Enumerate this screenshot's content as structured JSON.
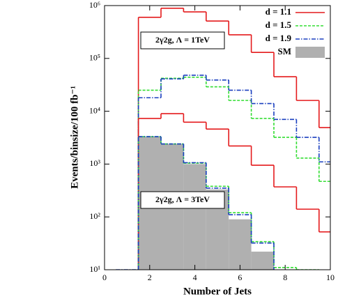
{
  "chart_data": {
    "type": "step-histogram",
    "x_label": "Number of Jets",
    "y_label": "Events/binsize/100 fb⁻¹",
    "annotations": [
      "2γ2g,  Λ = 1TeV",
      "2γ2g,  Λ = 3TeV"
    ],
    "bins": [
      0.5,
      1.5,
      2.5,
      3.5,
      4.5,
      5.5,
      6.5,
      7.5,
      8.5,
      9.5,
      10.5
    ],
    "xlim": [
      0,
      10
    ],
    "xticks": [
      0,
      2,
      4,
      6,
      8,
      10
    ],
    "ylim": [
      10,
      1000000
    ],
    "log_y": true,
    "yticks": [
      {
        "value": 10,
        "label": "10¹"
      },
      {
        "value": 100,
        "label": "10²"
      },
      {
        "value": 1000,
        "label": "10³"
      },
      {
        "value": 10000,
        "label": "10⁴"
      },
      {
        "value": 100000,
        "label": "10⁵"
      },
      {
        "value": 1000000,
        "label": "10⁶"
      }
    ],
    "legend": "upper right",
    "series": [
      {
        "name": "d = 1.1",
        "color": "#e41a1c",
        "linestyle": "solid",
        "values": [
          null,
          600000,
          890000,
          760000,
          510000,
          280000,
          130000,
          45000,
          16000,
          4900
        ]
      },
      {
        "name": "d = 1.5",
        "color": "#33dd33",
        "linestyle": "dashed",
        "values": [
          null,
          25000,
          42000,
          44000,
          29000,
          16000,
          7300,
          3200,
          1300,
          470
        ]
      },
      {
        "name": "d = 1.9",
        "color": "#1a3fbf",
        "linestyle": "dashdot",
        "values": [
          null,
          18000,
          41000,
          48000,
          39000,
          25000,
          14000,
          7000,
          3200,
          1100
        ]
      },
      {
        "color": "#e41a1c",
        "linestyle": "solid",
        "values": [
          null,
          7300,
          9000,
          6200,
          4600,
          2200,
          950,
          370,
          140,
          52
        ]
      },
      {
        "color": "#33dd33",
        "linestyle": "dashed",
        "values": [
          null,
          3300,
          2400,
          1040,
          380,
          120,
          34,
          11,
          10,
          null
        ]
      },
      {
        "color": "#1a3fbf",
        "linestyle": "dashdot",
        "values": [
          10,
          3300,
          2400,
          1060,
          350,
          110,
          32,
          null,
          null,
          null
        ]
      },
      {
        "name": "SM",
        "color": "#b0b0b0",
        "linestyle": "fill",
        "values": [
          null,
          3300,
          2400,
          1000,
          330,
          90,
          22,
          null,
          null,
          null
        ]
      }
    ]
  }
}
